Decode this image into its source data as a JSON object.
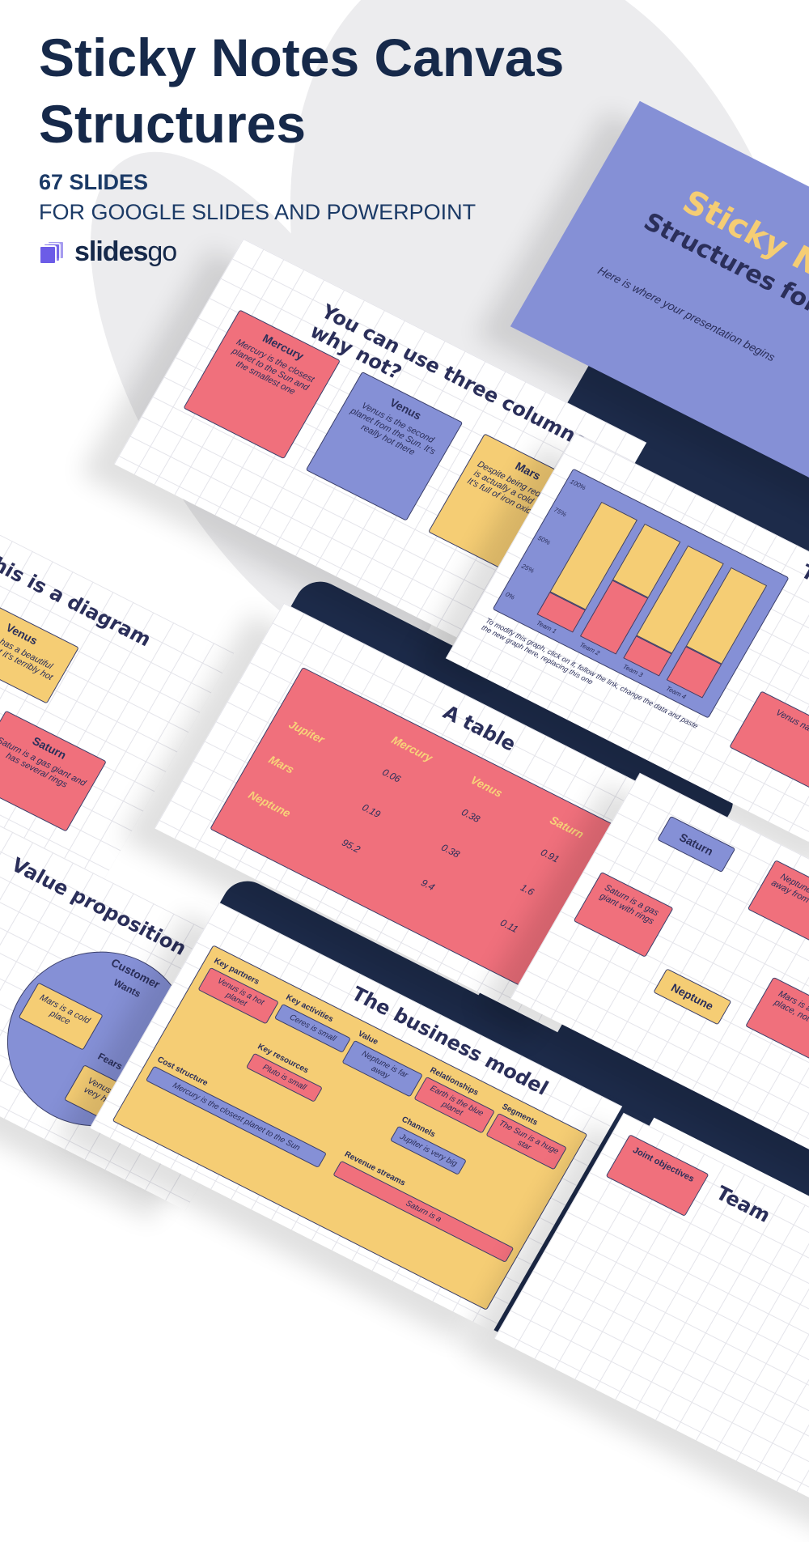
{
  "header": {
    "title": "Sticky Notes Canvas Structures",
    "slide_count": "67 SLIDES",
    "subtitle": "FOR GOOGLE SLIDES AND POWERPOINT",
    "brand_bold": "slides",
    "brand_light": "go"
  },
  "colors": {
    "red": "#f0707c",
    "blue": "#8590d6",
    "yellow": "#f5cd74",
    "navy": "#16294a",
    "brand": "#6c5ce7"
  },
  "cover": {
    "title": "Sticky Notes",
    "subtitle": "Structures for Org",
    "text": "Here is where your presentation begins"
  },
  "columns": {
    "title": "You can use three columns, why not?",
    "notes": [
      {
        "title": "Mercury",
        "text": "Mercury is the closest planet to the Sun and the smallest one"
      },
      {
        "title": "Venus",
        "text": "Venus is the second planet from the Sun. It's really hot there"
      },
      {
        "title": "Mars",
        "text": "Despite being red, Mars is actually a cold place. It's full of iron oxide dust"
      }
    ]
  },
  "diagram": {
    "title": "This is a diagram",
    "notes": [
      {
        "title": "Venus",
        "text": "Venus has a beautiful name, but it's terribly hot"
      },
      {
        "title": "Saturn",
        "text": "Saturn is a gas giant and has several rings"
      }
    ]
  },
  "chart": {
    "title": "Th",
    "y_ticks": [
      "100%",
      "75%",
      "50%",
      "25%",
      "0%"
    ],
    "categories": [
      "Team 1",
      "Team 2",
      "Team 3",
      "Team 4"
    ],
    "red_share": [
      20,
      50,
      20,
      30
    ],
    "caption": "To modify this graph, click on it, follow the link, change the data and paste the new graph here, replacing this one",
    "side_note": "Venus name"
  },
  "table": {
    "title": "A table",
    "columns": [
      "Mercury",
      "Venus",
      "Saturn"
    ],
    "rows": [
      {
        "label": "Jupiter",
        "values": [
          "0.06",
          "0.38",
          "0.91"
        ]
      },
      {
        "label": "Mars",
        "values": [
          "0.19",
          "0.38",
          "1.6"
        ]
      },
      {
        "label": "Neptune",
        "values": [
          "95.2",
          "9.4",
          "0.11"
        ]
      }
    ]
  },
  "value_prop": {
    "title": "Value proposition",
    "customer": "Customer",
    "wants": "Wants",
    "wants_text": "Mars is a cold place",
    "fears": "Fears",
    "fears_text": "Venus is very hot"
  },
  "business": {
    "title": "The business model",
    "sections": [
      {
        "label": "Key partners",
        "text": "Venus is a hot planet"
      },
      {
        "label": "Key activities",
        "text": "Ceres is small"
      },
      {
        "label": "Key resources",
        "text": "Pluto is small"
      },
      {
        "label": "Value",
        "text": "Neptune is far away"
      },
      {
        "label": "Relationships",
        "text": "Earth is the blue planet"
      },
      {
        "label": "Channels",
        "text": "Jupiter is very big"
      },
      {
        "label": "Segments",
        "text": "The Sun is a huge star"
      },
      {
        "label": "Cost structure",
        "text": "Mercury is the closest planet to the Sun"
      },
      {
        "label": "Revenue streams",
        "text": "Saturn is a"
      }
    ]
  },
  "org": {
    "saturn": "Saturn",
    "saturn_text": "Saturn is a gas giant with rings",
    "neptune": "Neptune",
    "neptune_text": "Neptune is far away from Earth",
    "mars_text": "Mars is a cold place, not hot"
  },
  "team": {
    "title": "Team",
    "note": "Joint objectives"
  }
}
